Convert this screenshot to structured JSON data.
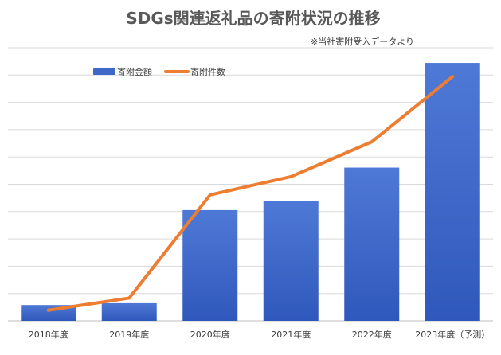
{
  "chart_data": {
    "type": "bar",
    "title": "SDGs関連返礼品の寄附状況の推移",
    "subtitle": "※当社寄附受入データより",
    "categories": [
      "2018年度",
      "2019年度",
      "2020年度",
      "2021年度",
      "2022年度",
      "2023年度（予測）"
    ],
    "series": [
      {
        "name": "寄附金額",
        "type": "bar",
        "color": "#3f67c8",
        "values": [
          5.2,
          5.8,
          36.5,
          39.5,
          50.5,
          85.0
        ]
      },
      {
        "name": "寄附件数",
        "type": "line",
        "color": "#ed7d31",
        "values": [
          3.5,
          7.5,
          41.5,
          47.5,
          59.0,
          80.5
        ]
      }
    ],
    "ylim": [
      0,
      90
    ],
    "grid": true,
    "legend_position": "top-left",
    "xlabel": "",
    "ylabel": ""
  }
}
